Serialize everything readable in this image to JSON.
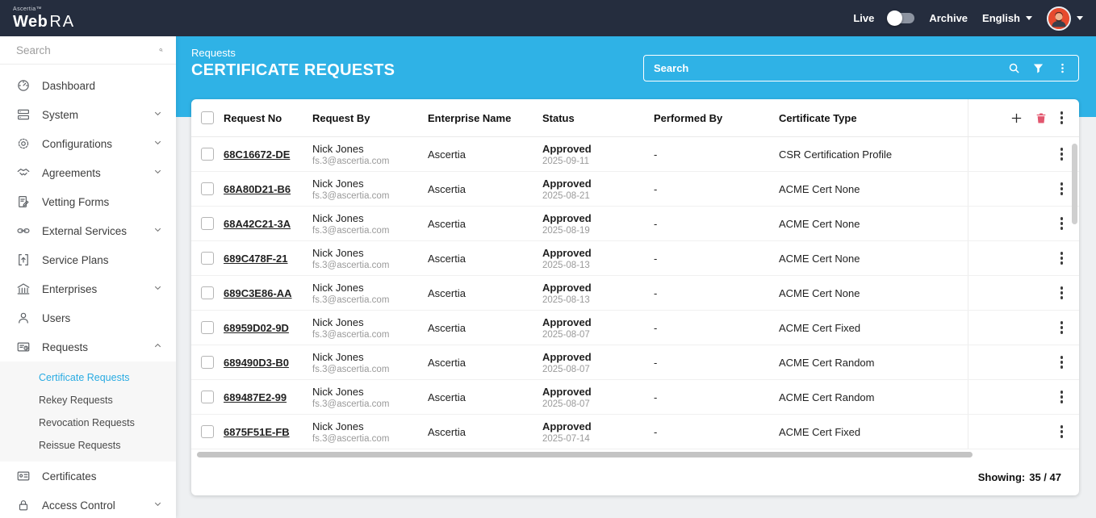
{
  "topbar": {
    "brand_small": "Ascertia™",
    "brand_web": "Web",
    "brand_ra": "RA",
    "live_label": "Live",
    "toggle_state": "live",
    "archive_label": "Archive",
    "language_label": "English"
  },
  "sidebar": {
    "search_placeholder": "Search",
    "items": [
      {
        "label": "Dashboard",
        "icon": "dashboard-icon",
        "expandable": false
      },
      {
        "label": "System",
        "icon": "system-icon",
        "expandable": true
      },
      {
        "label": "Configurations",
        "icon": "configurations-icon",
        "expandable": true
      },
      {
        "label": "Agreements",
        "icon": "agreements-icon",
        "expandable": true
      },
      {
        "label": "Vetting Forms",
        "icon": "vetting-forms-icon",
        "expandable": false
      },
      {
        "label": "External Services",
        "icon": "external-services-icon",
        "expandable": true
      },
      {
        "label": "Service Plans",
        "icon": "service-plans-icon",
        "expandable": false
      },
      {
        "label": "Enterprises",
        "icon": "enterprises-icon",
        "expandable": true
      },
      {
        "label": "Users",
        "icon": "users-icon",
        "expandable": false
      },
      {
        "label": "Requests",
        "icon": "requests-icon",
        "expandable": true,
        "expanded": true,
        "children": [
          "Certificate Requests",
          "Rekey Requests",
          "Revocation Requests",
          "Reissue Requests"
        ],
        "active_child": "Certificate Requests"
      },
      {
        "label": "Certificates",
        "icon": "certificates-icon",
        "expandable": false
      },
      {
        "label": "Access Control",
        "icon": "access-control-icon",
        "expandable": true
      }
    ]
  },
  "header": {
    "breadcrumb": "Requests",
    "title": "CERTIFICATE REQUESTS",
    "search_placeholder": "Search",
    "search_icons": [
      "search-icon",
      "filter-icon",
      "kebab-icon"
    ]
  },
  "table": {
    "columns": [
      "Request No",
      "Request By",
      "Enterprise Name",
      "Status",
      "Performed By",
      "Certificate Type"
    ],
    "header_actions": [
      "add-icon",
      "delete-icon",
      "kebab-icon"
    ],
    "rows": [
      {
        "request_no": "68C16672-DE",
        "request_by_name": "Nick Jones",
        "request_by_email": "fs.3@ascertia.com",
        "enterprise": "Ascertia",
        "status": "Approved",
        "status_date": "2025-09-11",
        "performed_by": "-",
        "certificate_type": "CSR Certification Profile"
      },
      {
        "request_no": "68A80D21-B6",
        "request_by_name": "Nick Jones",
        "request_by_email": "fs.3@ascertia.com",
        "enterprise": "Ascertia",
        "status": "Approved",
        "status_date": "2025-08-21",
        "performed_by": "-",
        "certificate_type": "ACME Cert None"
      },
      {
        "request_no": "68A42C21-3A",
        "request_by_name": "Nick Jones",
        "request_by_email": "fs.3@ascertia.com",
        "enterprise": "Ascertia",
        "status": "Approved",
        "status_date": "2025-08-19",
        "performed_by": "-",
        "certificate_type": "ACME Cert None"
      },
      {
        "request_no": "689C478F-21",
        "request_by_name": "Nick Jones",
        "request_by_email": "fs.3@ascertia.com",
        "enterprise": "Ascertia",
        "status": "Approved",
        "status_date": "2025-08-13",
        "performed_by": "-",
        "certificate_type": "ACME Cert None"
      },
      {
        "request_no": "689C3E86-AA",
        "request_by_name": "Nick Jones",
        "request_by_email": "fs.3@ascertia.com",
        "enterprise": "Ascertia",
        "status": "Approved",
        "status_date": "2025-08-13",
        "performed_by": "-",
        "certificate_type": "ACME Cert None"
      },
      {
        "request_no": "68959D02-9D",
        "request_by_name": "Nick Jones",
        "request_by_email": "fs.3@ascertia.com",
        "enterprise": "Ascertia",
        "status": "Approved",
        "status_date": "2025-08-07",
        "performed_by": "-",
        "certificate_type": "ACME Cert Fixed"
      },
      {
        "request_no": "689490D3-B0",
        "request_by_name": "Nick Jones",
        "request_by_email": "fs.3@ascertia.com",
        "enterprise": "Ascertia",
        "status": "Approved",
        "status_date": "2025-08-07",
        "performed_by": "-",
        "certificate_type": "ACME Cert Random"
      },
      {
        "request_no": "689487E2-99",
        "request_by_name": "Nick Jones",
        "request_by_email": "fs.3@ascertia.com",
        "enterprise": "Ascertia",
        "status": "Approved",
        "status_date": "2025-08-07",
        "performed_by": "-",
        "certificate_type": "ACME Cert Random"
      },
      {
        "request_no": "6875F51E-FB",
        "request_by_name": "Nick Jones",
        "request_by_email": "fs.3@ascertia.com",
        "enterprise": "Ascertia",
        "status": "Approved",
        "status_date": "2025-07-14",
        "performed_by": "-",
        "certificate_type": "ACME Cert Fixed"
      }
    ],
    "footer": {
      "showing_label": "Showing:",
      "showing_value": "35 / 47"
    }
  },
  "colors": {
    "topbar_bg": "#252d3e",
    "band_bg": "#2fb2e6",
    "accent": "#29abe2",
    "danger": "#e2566e"
  }
}
